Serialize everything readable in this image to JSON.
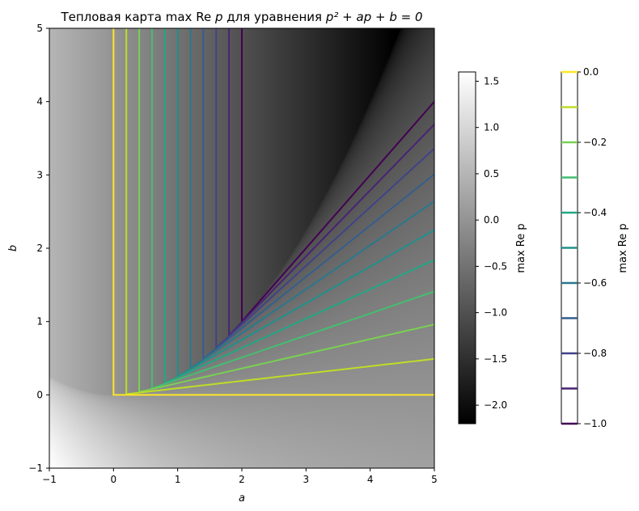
{
  "chart_data": {
    "type": "heatmap",
    "title_prefix": "Тепловая карта ",
    "title_math_max": "max",
    "title_math_re": "Re",
    "title_math_p": "p",
    "title_mid": " для уравнения ",
    "title_math_eq": "p² + ap + b = 0",
    "xlabel": "a",
    "ylabel": "b",
    "xlim": [
      -1,
      5
    ],
    "ylim": [
      -1,
      5
    ],
    "x_ticks": [
      "−1",
      "0",
      "1",
      "2",
      "3",
      "4",
      "5"
    ],
    "y_ticks": [
      "−1",
      "0",
      "1",
      "2",
      "3",
      "4",
      "5"
    ],
    "heatmap_colorbar": {
      "label": "max Re p",
      "range": [
        -2.2,
        1.6
      ],
      "ticks": [
        "1.5",
        "1.0",
        "0.5",
        "0.0",
        "−0.5",
        "−1.0",
        "−1.5",
        "−2.0"
      ],
      "tick_values": [
        1.5,
        1.0,
        0.5,
        0.0,
        -0.5,
        -1.0,
        -1.5,
        -2.0
      ],
      "colormap": "gray"
    },
    "contour_colorbar": {
      "label": "max Re p",
      "range": [
        -1.0,
        0.0
      ],
      "ticks": [
        "0.0",
        "−0.2",
        "−0.4",
        "−0.6",
        "−0.8",
        "−1.0"
      ],
      "tick_values": [
        0.0,
        -0.2,
        -0.4,
        -0.6,
        -0.8,
        -1.0
      ],
      "colormap": "viridis"
    },
    "contour_levels": [
      -1.0,
      -0.9,
      -0.8,
      -0.7,
      -0.6,
      -0.5,
      -0.4,
      -0.3,
      -0.2,
      -0.1,
      0.0
    ]
  }
}
